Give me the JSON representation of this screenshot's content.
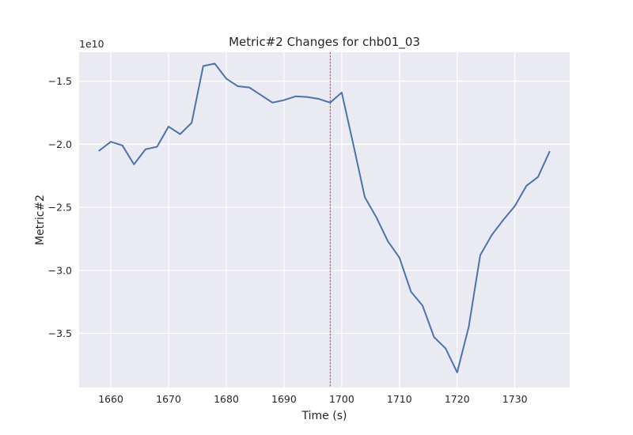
{
  "chart_data": {
    "type": "line",
    "title": "Metric#2 Changes for chb01_03",
    "xlabel": "Time (s)",
    "ylabel": "Metric#2",
    "y_offset_label": "1e10",
    "xlim": [
      1654.5,
      1739.5
    ],
    "ylim": [
      -3.93,
      -1.27
    ],
    "x_ticks": [
      1660,
      1670,
      1680,
      1690,
      1700,
      1710,
      1720,
      1730
    ],
    "x_tick_labels": [
      "1660",
      "1670",
      "1680",
      "1690",
      "1700",
      "1710",
      "1720",
      "1730"
    ],
    "y_ticks": [
      -3.5,
      -3.0,
      -2.5,
      -2.0,
      -1.5
    ],
    "y_tick_labels": [
      "−3.5",
      "−3.0",
      "−2.5",
      "−2.0",
      "−1.5"
    ],
    "grid": true,
    "series": [
      {
        "color": "#4c72b0",
        "x": [
          1658,
          1660,
          1662,
          1664,
          1666,
          1668,
          1670,
          1672,
          1674,
          1676,
          1678,
          1680,
          1682,
          1684,
          1686,
          1688,
          1690,
          1692,
          1694,
          1696,
          1698,
          1700,
          1702,
          1704,
          1706,
          1708,
          1710,
          1712,
          1714,
          1716,
          1718,
          1720,
          1722,
          1724,
          1726,
          1728,
          1730,
          1732,
          1734,
          1736
        ],
        "values": [
          -2.05,
          -1.98,
          -2.01,
          -2.16,
          -2.04,
          -2.02,
          -1.86,
          -1.92,
          -1.83,
          -1.38,
          -1.36,
          -1.48,
          -1.54,
          -1.55,
          -1.61,
          -1.67,
          -1.65,
          -1.62,
          -1.625,
          -1.64,
          -1.67,
          -1.59,
          -2.0,
          -2.42,
          -2.58,
          -2.77,
          -2.9,
          -3.17,
          -3.28,
          -3.53,
          -3.62,
          -3.81,
          -3.45,
          -2.88,
          -2.72,
          -2.6,
          -2.49,
          -2.33,
          -2.26,
          -2.06
        ]
      }
    ],
    "reference_line": {
      "x": 1698,
      "color": "#d62728",
      "style": "dashed"
    }
  }
}
